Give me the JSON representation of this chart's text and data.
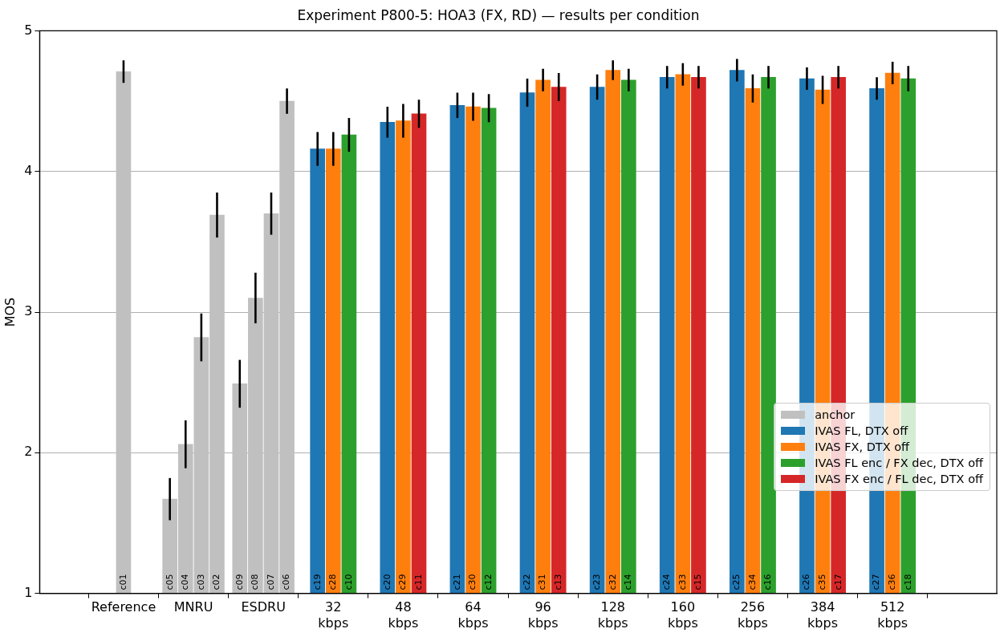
{
  "chart_data": {
    "type": "bar",
    "title": "Experiment P800-5: HOA3 (FX, RD) — results per condition",
    "ylabel": "MOS",
    "ylim": [
      1,
      5
    ],
    "yticks": [
      1,
      2,
      3,
      4,
      5
    ],
    "categories": [
      "Reference",
      "MNRU",
      "ESDRU",
      "32 kbps",
      "48 kbps",
      "64 kbps",
      "96 kbps",
      "128 kbps",
      "160 kbps",
      "256 kbps",
      "384 kbps",
      "512 kbps"
    ],
    "grid": "y",
    "legend": "bottom right",
    "series": [
      {
        "name": "anchor",
        "color": "#c0c0c0",
        "values": [
          4.71,
          1.67,
          2.49,
          null,
          null,
          null,
          null,
          null,
          null,
          null,
          null,
          null
        ],
        "errors": [
          0.08,
          0.15,
          0.17,
          null,
          null,
          null,
          null,
          null,
          null,
          null,
          null,
          null
        ],
        "value_labels": [
          "c01",
          "c05",
          "c09",
          null,
          null,
          null,
          null,
          null,
          null,
          null,
          null,
          null
        ]
      },
      {
        "color": "#c0c0c0",
        "values": [
          null,
          2.06,
          3.1,
          null,
          null,
          null,
          null,
          null,
          null,
          null,
          null,
          null
        ],
        "errors": [
          null,
          0.17,
          0.18,
          null,
          null,
          null,
          null,
          null,
          null,
          null,
          null,
          null
        ],
        "value_labels": [
          null,
          "c04",
          "c08",
          null,
          null,
          null,
          null,
          null,
          null,
          null,
          null,
          null
        ]
      },
      {
        "color": "#c0c0c0",
        "values": [
          null,
          2.82,
          3.7,
          null,
          null,
          null,
          null,
          null,
          null,
          null,
          null,
          null
        ],
        "errors": [
          null,
          0.17,
          0.15,
          null,
          null,
          null,
          null,
          null,
          null,
          null,
          null,
          null
        ],
        "value_labels": [
          null,
          "c03",
          "c07",
          null,
          null,
          null,
          null,
          null,
          null,
          null,
          null,
          null
        ]
      },
      {
        "color": "#c0c0c0",
        "values": [
          null,
          3.69,
          4.5,
          null,
          null,
          null,
          null,
          null,
          null,
          null,
          null,
          null
        ],
        "errors": [
          null,
          0.16,
          0.09,
          null,
          null,
          null,
          null,
          null,
          null,
          null,
          null,
          null
        ],
        "value_labels": [
          null,
          "c02",
          "c06",
          null,
          null,
          null,
          null,
          null,
          null,
          null,
          null,
          null
        ]
      },
      {
        "name": "IVAS FL, DTX off",
        "color": "#1f77b4",
        "values": [
          null,
          null,
          null,
          4.16,
          4.35,
          4.47,
          4.56,
          4.6,
          4.67,
          4.72,
          4.66,
          4.59
        ],
        "errors": [
          null,
          null,
          null,
          0.12,
          0.11,
          0.09,
          0.1,
          0.09,
          0.08,
          0.08,
          0.08,
          0.08
        ],
        "value_labels": [
          null,
          null,
          null,
          "c19",
          "c20",
          "c21",
          "c22",
          "c23",
          "c24",
          "c25",
          "c26",
          "c27"
        ]
      },
      {
        "name": "IVAS FX, DTX off",
        "color": "#ff7f0e",
        "values": [
          null,
          null,
          null,
          4.16,
          4.36,
          4.46,
          4.65,
          4.72,
          4.69,
          4.59,
          4.58,
          4.7
        ],
        "errors": [
          null,
          null,
          null,
          0.12,
          0.12,
          0.1,
          0.08,
          0.07,
          0.08,
          0.1,
          0.1,
          0.08
        ],
        "value_labels": [
          null,
          null,
          null,
          "c28",
          "c29",
          "c30",
          "c31",
          "c32",
          "c33",
          "c34",
          "c35",
          "c36"
        ]
      },
      {
        "name": "IVAS FL enc / FX dec, DTX off",
        "color": "#2ca02c",
        "values": [
          null,
          null,
          null,
          4.26,
          null,
          4.45,
          null,
          4.65,
          null,
          4.67,
          null,
          4.66
        ],
        "errors": [
          null,
          null,
          null,
          0.12,
          null,
          0.1,
          null,
          0.08,
          null,
          0.08,
          null,
          0.09
        ],
        "value_labels": [
          null,
          null,
          null,
          "c10",
          null,
          "c12",
          null,
          "c14",
          null,
          "c16",
          null,
          "c18"
        ]
      },
      {
        "name": "IVAS FX enc / FL dec, DTX off",
        "color": "#d62728",
        "values": [
          null,
          null,
          null,
          null,
          4.41,
          null,
          4.6,
          null,
          4.67,
          null,
          4.67,
          null
        ],
        "errors": [
          null,
          null,
          null,
          null,
          0.1,
          null,
          0.1,
          null,
          0.08,
          null,
          0.08,
          null
        ],
        "value_labels": [
          null,
          null,
          null,
          null,
          "c11",
          null,
          "c13",
          null,
          "c15",
          null,
          "c17",
          null
        ]
      }
    ]
  }
}
